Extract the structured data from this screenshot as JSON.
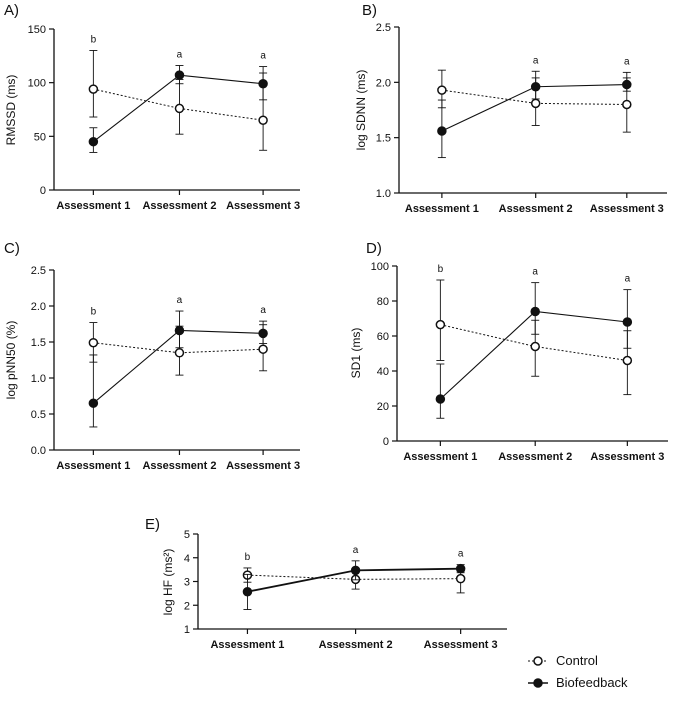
{
  "figure": {
    "legend": [
      {
        "label": "Control",
        "marker": "open-circle",
        "line": "dotted"
      },
      {
        "label": "Biofeedback",
        "marker": "filled-circle",
        "line": "solid"
      }
    ]
  },
  "chart_data": [
    {
      "panel": "A)",
      "type": "line",
      "ylabel": "RMSSD (ms)",
      "ylim": [
        0,
        150
      ],
      "yticks": [
        "0",
        "50",
        "100",
        "150"
      ],
      "categories": [
        "Assessment 1",
        "Assessment 2",
        "Assessment 3"
      ],
      "significance": [
        "b",
        "a",
        "a"
      ],
      "series": [
        {
          "name": "Control",
          "values": [
            94,
            76,
            65
          ],
          "err_low": [
            68,
            52,
            37
          ],
          "err_high": [
            130,
            103,
            109
          ]
        },
        {
          "name": "Biofeedback",
          "values": [
            45,
            107,
            99
          ],
          "err_low": [
            35,
            99,
            84
          ],
          "err_high": [
            58,
            116,
            115
          ]
        }
      ]
    },
    {
      "panel": "B)",
      "type": "line",
      "ylabel": "log SDNN (ms)",
      "ylim": [
        1.0,
        2.5
      ],
      "yticks": [
        "1.0",
        "1.5",
        "2.0",
        "2.5"
      ],
      "categories": [
        "Assessment 1",
        "Assessment 2",
        "Assessment 3"
      ],
      "significance": [
        "",
        "a",
        "a"
      ],
      "series": [
        {
          "name": "Control",
          "values": [
            1.93,
            1.81,
            1.8
          ],
          "err_low": [
            1.77,
            1.61,
            1.55
          ],
          "err_high": [
            2.11,
            2.04,
            2.04
          ]
        },
        {
          "name": "Biofeedback",
          "values": [
            1.56,
            1.96,
            1.98
          ],
          "err_low": [
            1.32,
            1.85,
            1.92
          ],
          "err_high": [
            1.84,
            2.1,
            2.09
          ]
        }
      ]
    },
    {
      "panel": "C)",
      "type": "line",
      "ylabel": "log pNN50 (%)",
      "ylim": [
        0.0,
        2.5
      ],
      "yticks": [
        "0.0",
        "0.5",
        "1.0",
        "1.5",
        "2.0",
        "2.5"
      ],
      "categories": [
        "Assessment 1",
        "Assessment 2",
        "Assessment 3"
      ],
      "significance": [
        "b",
        "a",
        "a"
      ],
      "series": [
        {
          "name": "Control",
          "values": [
            1.49,
            1.35,
            1.4
          ],
          "err_low": [
            1.22,
            1.04,
            1.1
          ],
          "err_high": [
            1.77,
            1.72,
            1.74
          ]
        },
        {
          "name": "Biofeedback",
          "values": [
            0.65,
            1.66,
            1.62
          ],
          "err_low": [
            0.32,
            1.42,
            1.48
          ],
          "err_high": [
            1.32,
            1.93,
            1.79
          ]
        }
      ]
    },
    {
      "panel": "D)",
      "type": "line",
      "ylabel": "SD1 (ms)",
      "ylim": [
        0,
        100
      ],
      "yticks": [
        "0",
        "20",
        "40",
        "60",
        "80",
        "100"
      ],
      "categories": [
        "Assessment 1",
        "Assessment 2",
        "Assessment 3"
      ],
      "significance": [
        "b",
        "a",
        "a"
      ],
      "series": [
        {
          "name": "Control",
          "values": [
            66.5,
            54,
            46
          ],
          "err_low": [
            46,
            37,
            26.5
          ],
          "err_high": [
            92,
            69,
            63
          ]
        },
        {
          "name": "Biofeedback",
          "values": [
            24,
            74,
            68
          ],
          "err_low": [
            13,
            61,
            53
          ],
          "err_high": [
            44,
            90.5,
            86.5
          ]
        }
      ]
    },
    {
      "panel": "E)",
      "type": "line",
      "ylabel": "log HF (ms²)",
      "ylim": [
        1,
        5
      ],
      "yticks": [
        "1",
        "2",
        "3",
        "4",
        "5"
      ],
      "categories": [
        "Assessment 1",
        "Assessment 2",
        "Assessment 3"
      ],
      "significance": [
        "b",
        "a",
        "a"
      ],
      "series": [
        {
          "name": "Control",
          "values": [
            3.27,
            3.09,
            3.12
          ],
          "err_low": [
            2.97,
            2.68,
            2.52
          ],
          "err_high": [
            3.57,
            3.49,
            3.43
          ]
        },
        {
          "name": "Biofeedback",
          "values": [
            2.57,
            3.47,
            3.54
          ],
          "err_low": [
            1.82,
            3.07,
            3.37
          ],
          "err_high": [
            3.3,
            3.87,
            3.71
          ]
        }
      ]
    }
  ]
}
